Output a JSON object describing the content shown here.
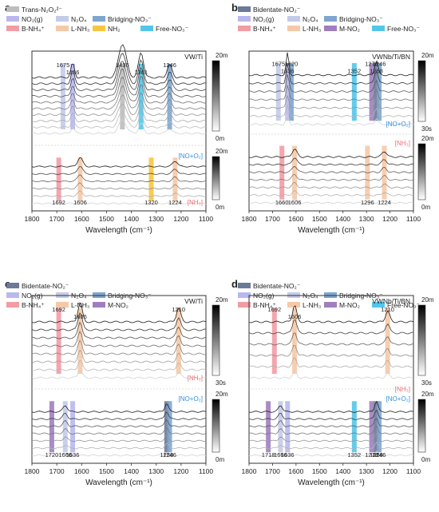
{
  "colors": {
    "trans": "#bdbdbd",
    "bidentate": "#6b7a99",
    "no2g": "#b9b8ee",
    "n2o4": "#c4cbe8",
    "bridging": "#7ea6cf",
    "bnh4": "#f29ca4",
    "lnh3": "#f5c9a7",
    "nh2": "#f7c640",
    "free": "#52c6ea",
    "mno2": "#a07fc0",
    "red": "#e8707a",
    "blue": "#2f8fe0"
  },
  "chart_data": [
    {
      "type": "line",
      "panel": "a",
      "title": "VW/Ti",
      "xlabel": "Wavelength (cm⁻¹)",
      "xlim": [
        1800,
        1100
      ],
      "xticks": [
        1800,
        1700,
        1600,
        1500,
        1400,
        1300,
        1200,
        1100
      ],
      "legend": [
        {
          "label": "Trans-N₂O₂²⁻",
          "color": "trans"
        },
        {
          "label": "NO₂(g)",
          "color": "no2g"
        },
        {
          "label": "N₂O₄",
          "color": "n2o4"
        },
        {
          "label": "Bridging-NO₃⁻",
          "color": "bridging"
        },
        {
          "label": "B-NH₄⁺",
          "color": "bnh4"
        },
        {
          "label": "L-NH₃",
          "color": "lnh3"
        },
        {
          "label": "NH₂",
          "color": "nh2"
        },
        {
          "label": "Free-NO₃⁻",
          "color": "free"
        }
      ],
      "upper": {
        "bands": [
          {
            "x": 1675,
            "color": "n2o4"
          },
          {
            "x": 1636,
            "color": "no2g"
          },
          {
            "x": 1436,
            "color": "trans"
          },
          {
            "x": 1361,
            "color": "free"
          },
          {
            "x": 1246,
            "color": "bridging"
          }
        ],
        "labels": [
          1675,
          1636,
          1436,
          1361,
          1246
        ],
        "peaks": [
          {
            "x": 1636,
            "h": 0.5,
            "w": 10
          },
          {
            "x": 1436,
            "h": 1.2,
            "w": 22
          },
          {
            "x": 1361,
            "h": 0.9,
            "w": 14
          },
          {
            "x": 1246,
            "h": 0.45,
            "w": 14
          }
        ],
        "n": 10,
        "time": [
          "20m",
          "0m"
        ]
      },
      "lower": {
        "condition": "[NO+O₂]",
        "condition_color": "blue",
        "bands": [
          {
            "x": 1692,
            "color": "bnh4"
          },
          {
            "x": 1606,
            "color": "lnh3"
          },
          {
            "x": 1320,
            "color": "nh2"
          },
          {
            "x": 1224,
            "color": "lnh3"
          }
        ],
        "labels": [
          1692,
          1606,
          1320,
          1224
        ],
        "peaks": [
          {
            "x": 1606,
            "h": 0.5,
            "w": 14
          },
          {
            "x": 1224,
            "h": 0.3,
            "w": 14
          }
        ],
        "n": 6,
        "time": [
          "20m",
          "0m"
        ]
      },
      "lower_condition2": "[NH₃]",
      "lower_condition2_color": "red"
    },
    {
      "type": "line",
      "panel": "b",
      "title": "VWNb/Ti/BN",
      "xlabel": "Wavelength (cm⁻¹)",
      "xlim": [
        1800,
        1100
      ],
      "xticks": [
        1800,
        1700,
        1600,
        1500,
        1400,
        1300,
        1200,
        1100
      ],
      "legend": [
        {
          "label": "Bidentate-NO₂⁻",
          "color": "bidentate"
        },
        {
          "label": "NO₂(g)",
          "color": "no2g"
        },
        {
          "label": "N₂O₄",
          "color": "n2o4"
        },
        {
          "label": "Bridging-NO₃⁻",
          "color": "bridging"
        },
        {
          "label": "B-NH₄⁺",
          "color": "bnh4"
        },
        {
          "label": "L-NH₃",
          "color": "lnh3"
        },
        {
          "label": "M-NO₂",
          "color": "mno2"
        },
        {
          "label": "Free-NO₃⁻",
          "color": "free"
        }
      ],
      "upper": {
        "condition": "[NO+O₂]",
        "condition_color": "blue",
        "bands": [
          {
            "x": 1675,
            "color": "n2o4"
          },
          {
            "x": 1636,
            "color": "no2g"
          },
          {
            "x": 1620,
            "color": "bridging"
          },
          {
            "x": 1352,
            "color": "free"
          },
          {
            "x": 1278,
            "color": "mno2"
          },
          {
            "x": 1258,
            "color": "bidentate"
          },
          {
            "x": 1246,
            "color": "bridging"
          }
        ],
        "labels": [
          1675,
          1636,
          1620,
          1352,
          1278,
          1258,
          1246
        ],
        "peaks": [
          {
            "x": 1636,
            "h": 0.9,
            "w": 8
          },
          {
            "x": 1258,
            "h": 0.6,
            "w": 10
          }
        ],
        "n": 7,
        "time": [
          "20m",
          "30s"
        ]
      },
      "lower": {
        "condition": "[NH₃]",
        "condition_color": "red",
        "bands": [
          {
            "x": 1660,
            "color": "bnh4"
          },
          {
            "x": 1606,
            "color": "lnh3"
          },
          {
            "x": 1296,
            "color": "lnh3"
          },
          {
            "x": 1224,
            "color": "lnh3"
          }
        ],
        "labels": [
          1660,
          1606,
          1296,
          1224
        ],
        "peaks": [
          {
            "x": 1606,
            "h": 0.35,
            "w": 14
          },
          {
            "x": 1224,
            "h": 0.25,
            "w": 14
          }
        ],
        "n": 7,
        "time": [
          "20m",
          "0m"
        ]
      }
    },
    {
      "type": "line",
      "panel": "c",
      "title": "VW/Ti",
      "xlabel": "Wavelength (cm⁻¹)",
      "xlim": [
        1800,
        1100
      ],
      "xticks": [
        1800,
        1700,
        1600,
        1500,
        1400,
        1300,
        1200,
        1100
      ],
      "legend": [
        {
          "label": "Bidentate-NO₂⁻",
          "color": "bidentate"
        },
        {
          "label": "NO₂(g)",
          "color": "no2g"
        },
        {
          "label": "N₂O₄",
          "color": "n2o4"
        },
        {
          "label": "Bridging-NO₃⁻",
          "color": "bridging"
        },
        {
          "label": "B-NH₄⁺",
          "color": "bnh4"
        },
        {
          "label": "L-NH₃",
          "color": "lnh3"
        },
        {
          "label": "M-NO₂",
          "color": "mno2"
        }
      ],
      "upper": {
        "condition": "[NH₃]",
        "condition_color": "red",
        "bands": [
          {
            "x": 1692,
            "color": "bnh4"
          },
          {
            "x": 1606,
            "color": "lnh3"
          },
          {
            "x": 1210,
            "color": "lnh3"
          }
        ],
        "labels": [
          1692,
          1606,
          1210
        ],
        "peaks": [
          {
            "x": 1606,
            "h": 0.7,
            "w": 12
          },
          {
            "x": 1210,
            "h": 0.5,
            "w": 12
          }
        ],
        "n": 8,
        "time": [
          "20m",
          "30s"
        ]
      },
      "lower": {
        "condition": "[NO+O₂]",
        "condition_color": "blue",
        "bands": [
          {
            "x": 1720,
            "color": "mno2"
          },
          {
            "x": 1666,
            "color": "n2o4"
          },
          {
            "x": 1636,
            "color": "no2g"
          },
          {
            "x": 1258,
            "color": "bidentate"
          },
          {
            "x": 1246,
            "color": "bridging"
          }
        ],
        "labels": [
          1720,
          1666,
          1636,
          1258,
          1246
        ],
        "peaks": [
          {
            "x": 1666,
            "h": 0.3,
            "w": 12
          },
          {
            "x": 1258,
            "h": 0.4,
            "w": 10
          }
        ],
        "n": 7,
        "time": [
          "20m",
          "0m"
        ]
      }
    },
    {
      "type": "line",
      "panel": "d",
      "title": "VWNb/Ti/BN",
      "xlabel": "Wavelength (cm⁻¹)",
      "xlim": [
        1800,
        1100
      ],
      "xticks": [
        1800,
        1700,
        1600,
        1500,
        1400,
        1300,
        1200,
        1100
      ],
      "legend": [
        {
          "label": "Bidentate-NO₂⁻",
          "color": "bidentate"
        },
        {
          "label": "NO₂(g)",
          "color": "no2g"
        },
        {
          "label": "N₂O₄",
          "color": "n2o4"
        },
        {
          "label": "Bridging-NO₃⁻",
          "color": "bridging"
        },
        {
          "label": "B-NH₄⁺",
          "color": "bnh4"
        },
        {
          "label": "L-NH₃",
          "color": "lnh3"
        },
        {
          "label": "M-NO₂",
          "color": "mno2"
        },
        {
          "label": "Free-NO₃⁻",
          "color": "free"
        }
      ],
      "upper": {
        "bands": [
          {
            "x": 1692,
            "color": "bnh4"
          },
          {
            "x": 1606,
            "color": "lnh3"
          },
          {
            "x": 1210,
            "color": "lnh3"
          }
        ],
        "labels": [
          1692,
          1606,
          1210
        ],
        "peaks": [
          {
            "x": 1606,
            "h": 0.6,
            "w": 12
          },
          {
            "x": 1210,
            "h": 0.4,
            "w": 12
          }
        ],
        "n": 6,
        "time": [
          "20m",
          "30s"
        ]
      },
      "lower": {
        "condition": "[NO+O₂]",
        "condition_color": "blue",
        "bands": [
          {
            "x": 1718,
            "color": "mno2"
          },
          {
            "x": 1666,
            "color": "n2o4"
          },
          {
            "x": 1636,
            "color": "no2g"
          },
          {
            "x": 1352,
            "color": "free"
          },
          {
            "x": 1278,
            "color": "mno2"
          },
          {
            "x": 1258,
            "color": "bidentate"
          },
          {
            "x": 1246,
            "color": "bridging"
          }
        ],
        "labels": [
          1718,
          1666,
          1636,
          1352,
          1278,
          1258,
          1246
        ],
        "peaks": [
          {
            "x": 1666,
            "h": 0.3,
            "w": 12
          },
          {
            "x": 1258,
            "h": 0.5,
            "w": 10
          }
        ],
        "n": 7,
        "time": [
          "20m",
          "0m"
        ]
      },
      "upper_condition": "[NH₃]",
      "upper_condition_color": "red"
    }
  ]
}
